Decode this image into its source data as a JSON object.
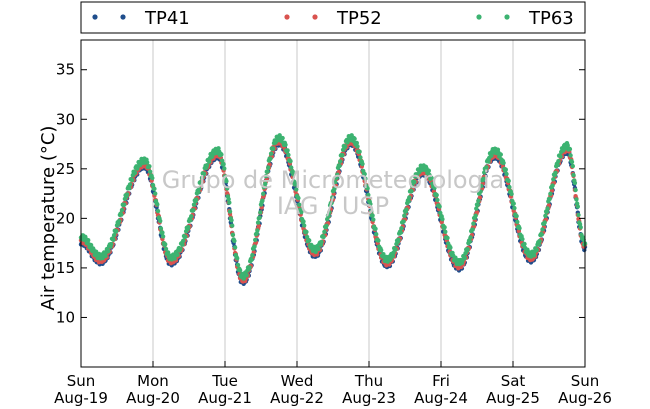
{
  "chart_data": {
    "type": "scatter",
    "ylabel": "Air temperature (°C)",
    "ylim": [
      5,
      38
    ],
    "yticks": [
      10,
      15,
      20,
      25,
      30,
      35
    ],
    "xlim": [
      0,
      7
    ],
    "x_ticks": [
      {
        "day": "Sun",
        "date": "Aug-19"
      },
      {
        "day": "Mon",
        "date": "Aug-20"
      },
      {
        "day": "Tue",
        "date": "Aug-21"
      },
      {
        "day": "Wed",
        "date": "Aug-22"
      },
      {
        "day": "Thu",
        "date": "Aug-23"
      },
      {
        "day": "Fri",
        "date": "Aug-24"
      },
      {
        "day": "Sat",
        "date": "Aug-25"
      },
      {
        "day": "Sun",
        "date": "Aug-26"
      }
    ],
    "grid": {
      "x": true,
      "y": false
    },
    "legend_position": "top",
    "watermark": [
      "Grupo de Micrometeorologia",
      "IAG / USP"
    ],
    "series": [
      {
        "name": "TP41",
        "color": "#1f4e8c",
        "offset": -0.2
      },
      {
        "name": "TP52",
        "color": "#d9534f",
        "offset": 0.0
      },
      {
        "name": "TP63",
        "color": "#3cb371",
        "offset": 0.35
      }
    ],
    "daily_extremes_days": [
      0,
      0.27,
      0.88,
      1.25,
      1.9,
      2.25,
      2.75,
      3.25,
      3.75,
      4.25,
      4.75,
      5.25,
      5.75,
      6.25,
      6.75,
      7.0
    ],
    "daily_extremes_temp": [
      17.8,
      15.8,
      25.5,
      15.7,
      26.5,
      13.8,
      27.8,
      16.5,
      27.8,
      15.5,
      24.8,
      15.2,
      26.5,
      16.0,
      27.0,
      17.2
    ]
  }
}
